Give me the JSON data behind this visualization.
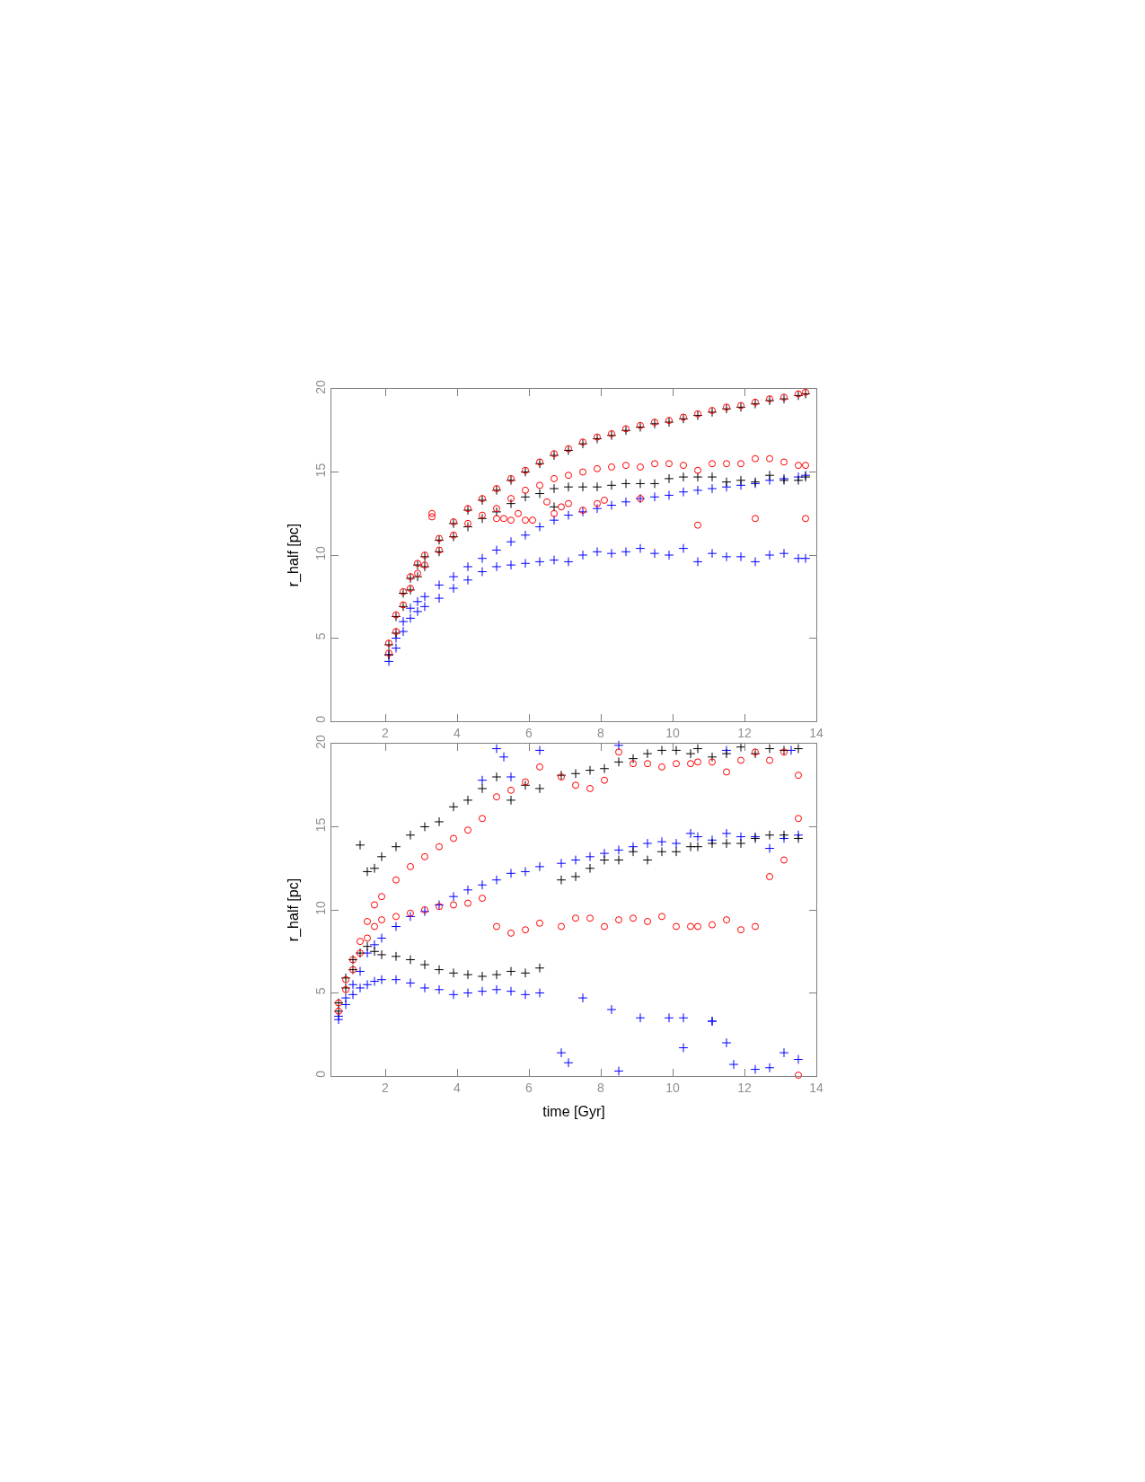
{
  "chart_data": [
    {
      "type": "scatter",
      "ylabel": "r_half [pc]",
      "xlim": [
        0.5,
        14
      ],
      "xticks": [
        2,
        4,
        6,
        8,
        10,
        12,
        14
      ],
      "ylim": [
        0,
        20
      ],
      "yticks": [
        0,
        5,
        10,
        15,
        20
      ],
      "series": [
        {
          "color": "#0000ff",
          "marker": "cross",
          "x": [
            2.1,
            2.3,
            2.5,
            2.7,
            2.9,
            3.1,
            3.5,
            3.9,
            4.3,
            4.7,
            5.1,
            5.5,
            5.9,
            6.3,
            6.7,
            7.1,
            7.5,
            7.9,
            8.3,
            8.7,
            9.1,
            9.5,
            9.9,
            10.3,
            10.7,
            11.1,
            11.5,
            11.9,
            12.3,
            12.7,
            13.1,
            13.5,
            13.7,
            2.1,
            2.3,
            2.5,
            2.7,
            2.9,
            3.1,
            3.5,
            3.9,
            4.3,
            4.7,
            5.1,
            5.5,
            5.9,
            6.3,
            6.7,
            7.1,
            7.5,
            7.9,
            8.3,
            8.7,
            9.1,
            9.5,
            9.9,
            10.3,
            10.7,
            11.1,
            11.5,
            11.9,
            12.3,
            12.7,
            13.1,
            13.5,
            13.7
          ],
          "values": [
            4.0,
            5.0,
            6.0,
            6.8,
            7.2,
            7.5,
            8.2,
            8.7,
            9.3,
            9.8,
            10.3,
            10.8,
            11.2,
            11.7,
            12.1,
            12.4,
            12.6,
            12.8,
            13.0,
            13.2,
            13.4,
            13.5,
            13.6,
            13.8,
            13.9,
            14.0,
            14.1,
            14.2,
            14.3,
            14.5,
            14.6,
            14.7,
            14.8,
            3.6,
            4.4,
            5.4,
            6.2,
            6.6,
            6.9,
            7.4,
            8.0,
            8.5,
            9.0,
            9.3,
            9.4,
            9.5,
            9.6,
            9.7,
            9.6,
            10.0,
            10.2,
            10.1,
            10.2,
            10.4,
            10.1,
            10.0,
            10.4,
            9.6,
            10.1,
            9.9,
            9.9,
            9.6,
            10.0,
            10.1,
            9.8,
            9.8
          ]
        },
        {
          "color": "#000000",
          "marker": "cross",
          "x": [
            2.1,
            2.3,
            2.5,
            2.7,
            2.9,
            3.1,
            3.5,
            3.9,
            4.3,
            4.7,
            5.1,
            5.5,
            5.9,
            6.3,
            6.7,
            7.1,
            7.5,
            7.9,
            8.3,
            8.7,
            9.1,
            9.5,
            9.9,
            10.3,
            10.7,
            11.1,
            11.5,
            11.9,
            12.3,
            12.7,
            13.1,
            13.5,
            13.7,
            2.1,
            2.3,
            2.5,
            2.7,
            2.9,
            3.1,
            3.5,
            3.9,
            4.3,
            4.7,
            5.1,
            5.5,
            5.9,
            6.3,
            6.7,
            7.1,
            7.5,
            7.9,
            8.3,
            8.7,
            9.1,
            9.5,
            9.9,
            10.3,
            10.7,
            11.1,
            11.5,
            11.9,
            12.3,
            12.7,
            13.1,
            13.5,
            13.7,
            6.7
          ],
          "values": [
            4.6,
            6.3,
            7.7,
            8.6,
            9.4,
            9.9,
            10.9,
            11.9,
            12.7,
            13.3,
            13.9,
            14.5,
            15.0,
            15.5,
            16.0,
            16.3,
            16.7,
            17.0,
            17.2,
            17.5,
            17.7,
            17.9,
            18.0,
            18.2,
            18.4,
            18.6,
            18.8,
            18.9,
            19.1,
            19.3,
            19.4,
            19.6,
            19.7,
            4.0,
            5.3,
            6.9,
            7.9,
            8.7,
            9.3,
            10.2,
            11.1,
            11.7,
            12.2,
            12.6,
            13.1,
            13.5,
            13.7,
            14.0,
            14.1,
            14.1,
            14.1,
            14.2,
            14.3,
            14.3,
            14.3,
            14.6,
            14.7,
            14.7,
            14.7,
            14.4,
            14.5,
            14.4,
            14.8,
            14.5,
            14.5,
            14.7,
            12.9
          ]
        },
        {
          "color": "#ff0000",
          "marker": "circle",
          "x": [
            2.1,
            2.3,
            2.5,
            2.7,
            2.9,
            3.1,
            3.5,
            3.9,
            4.3,
            4.7,
            5.1,
            5.5,
            5.9,
            6.3,
            6.7,
            7.1,
            7.5,
            7.9,
            8.3,
            8.7,
            9.1,
            9.5,
            9.9,
            10.3,
            10.7,
            11.1,
            11.5,
            11.9,
            12.3,
            12.7,
            13.1,
            13.5,
            13.7,
            2.1,
            2.3,
            2.5,
            2.7,
            2.9,
            3.1,
            3.5,
            3.9,
            4.3,
            4.7,
            5.1,
            5.5,
            5.9,
            6.3,
            6.7,
            7.1,
            7.5,
            7.9,
            8.3,
            8.7,
            9.1,
            9.5,
            9.9,
            10.3,
            10.7,
            11.1,
            11.5,
            11.9,
            12.3,
            12.7,
            13.1,
            13.5,
            13.7,
            3.3,
            3.3,
            5.1,
            5.3,
            5.5,
            5.7,
            5.9,
            6.1,
            6.5,
            6.7,
            6.9,
            7.1,
            7.5,
            7.9,
            8.1,
            9.1,
            10.7,
            12.3,
            13.7
          ],
          "values": [
            4.7,
            6.4,
            7.8,
            8.7,
            9.5,
            10.0,
            11.0,
            12.0,
            12.8,
            13.4,
            14.0,
            14.6,
            15.1,
            15.6,
            16.1,
            16.4,
            16.8,
            17.1,
            17.3,
            17.6,
            17.8,
            18.0,
            18.1,
            18.3,
            18.5,
            18.7,
            18.9,
            19.0,
            19.2,
            19.4,
            19.5,
            19.7,
            19.8,
            4.1,
            5.4,
            7.0,
            8.0,
            8.9,
            9.4,
            10.3,
            11.2,
            11.9,
            12.4,
            12.8,
            13.4,
            13.9,
            14.2,
            14.6,
            14.8,
            15.0,
            15.2,
            15.3,
            15.4,
            15.3,
            15.5,
            15.5,
            15.4,
            15.1,
            15.5,
            15.5,
            15.5,
            15.8,
            15.8,
            15.6,
            15.4,
            15.4,
            12.5,
            12.3,
            12.2,
            12.2,
            12.1,
            12.5,
            12.1,
            12.1,
            13.2,
            12.5,
            12.9,
            13.1,
            12.7,
            13.1,
            13.3,
            13.4,
            11.8,
            12.2,
            12.2
          ]
        }
      ]
    },
    {
      "type": "scatter",
      "xlabel": "time [Gyr]",
      "ylabel": "r_half [pc]",
      "xlim": [
        0.5,
        14
      ],
      "xticks": [
        2,
        4,
        6,
        8,
        10,
        12,
        14
      ],
      "ylim": [
        0,
        20
      ],
      "yticks": [
        0,
        5,
        10,
        15,
        20
      ],
      "series": [
        {
          "color": "#0000ff",
          "marker": "cross",
          "x": [
            0.7,
            0.9,
            1.1,
            1.3,
            1.5,
            1.7,
            1.9,
            2.3,
            2.7,
            3.1,
            3.5,
            3.9,
            4.3,
            4.7,
            5.1,
            5.5,
            5.9,
            6.3,
            6.9,
            7.3,
            7.7,
            8.1,
            8.5,
            8.9,
            9.3,
            9.7,
            10.1,
            10.5,
            10.7,
            11.1,
            11.5,
            11.9,
            12.3,
            12.7,
            13.1,
            13.5,
            0.7,
            0.9,
            1.1,
            1.3,
            1.5,
            1.7,
            1.9,
            2.3,
            2.7,
            3.1,
            3.5,
            3.9,
            4.3,
            4.7,
            5.1,
            5.5,
            5.9,
            6.3,
            6.9,
            7.1,
            7.5,
            8.3,
            8.5,
            9.1,
            9.9,
            10.3,
            10.3,
            11.1,
            11.1,
            11.5,
            11.7,
            12.3,
            12.7,
            13.1,
            13.5,
            5.1,
            5.3,
            4.7,
            5.5,
            6.3,
            8.5,
            11.5,
            13.3
          ],
          "values": [
            3.6,
            4.7,
            5.5,
            6.3,
            7.4,
            7.9,
            8.3,
            9.0,
            9.6,
            9.9,
            10.3,
            10.8,
            11.2,
            11.5,
            11.8,
            12.2,
            12.3,
            12.6,
            12.8,
            13.0,
            13.2,
            13.4,
            13.6,
            13.8,
            14.0,
            14.1,
            14.0,
            14.6,
            14.4,
            14.2,
            14.6,
            14.4,
            14.4,
            13.7,
            14.3,
            14.5,
            3.4,
            4.3,
            4.9,
            5.3,
            5.5,
            5.7,
            5.8,
            5.8,
            5.6,
            5.3,
            5.2,
            4.9,
            5.0,
            5.1,
            5.2,
            5.1,
            4.9,
            5.0,
            1.4,
            0.8,
            4.7,
            4.0,
            0.3,
            3.5,
            3.5,
            3.5,
            1.7,
            3.3,
            3.3,
            2.0,
            0.7,
            0.4,
            0.5,
            1.4,
            1.0,
            19.7,
            19.2,
            17.8,
            18.0,
            19.6,
            19.9,
            19.6,
            19.6
          ]
        },
        {
          "color": "#000000",
          "marker": "cross",
          "x": [
            0.7,
            0.9,
            1.1,
            1.3,
            1.5,
            1.7,
            1.9,
            2.3,
            2.7,
            3.1,
            3.5,
            3.9,
            4.3,
            4.7,
            5.1,
            5.5,
            5.9,
            6.3,
            6.9,
            7.3,
            7.7,
            8.1,
            8.5,
            8.9,
            9.3,
            9.7,
            10.1,
            10.5,
            10.7,
            11.1,
            11.5,
            11.9,
            12.3,
            12.7,
            13.1,
            13.5,
            0.7,
            0.9,
            1.1,
            1.3,
            1.5,
            1.7,
            1.9,
            2.3,
            2.7,
            3.1,
            3.5,
            3.9,
            4.3,
            4.7,
            5.1,
            5.5,
            5.9,
            6.3,
            6.9,
            7.3,
            7.7,
            8.1,
            8.5,
            8.9,
            9.3,
            9.7,
            10.1,
            10.5,
            10.7,
            11.1,
            11.5,
            11.9,
            12.3,
            12.7,
            13.1,
            13.5
          ],
          "values": [
            4.4,
            5.9,
            7.0,
            13.9,
            12.3,
            12.5,
            13.2,
            13.8,
            14.5,
            15.0,
            15.3,
            16.2,
            16.6,
            17.3,
            18.0,
            16.6,
            17.5,
            17.3,
            18.1,
            18.2,
            18.4,
            18.5,
            18.9,
            19.1,
            19.4,
            19.6,
            19.6,
            19.4,
            19.7,
            19.2,
            19.4,
            19.8,
            19.4,
            19.7,
            19.6,
            19.7,
            3.9,
            5.3,
            6.4,
            7.4,
            7.8,
            7.5,
            7.3,
            7.2,
            7.0,
            6.7,
            6.4,
            6.2,
            6.1,
            6.0,
            6.1,
            6.3,
            6.2,
            6.5,
            11.8,
            12.0,
            12.5,
            13.0,
            13.0,
            13.5,
            13.0,
            13.5,
            13.5,
            13.8,
            13.8,
            14.0,
            14.0,
            14.0,
            14.3,
            14.5,
            14.5,
            14.3
          ]
        },
        {
          "color": "#ff0000",
          "marker": "circle",
          "x": [
            0.7,
            0.9,
            1.1,
            1.3,
            1.5,
            1.7,
            1.9,
            2.3,
            2.7,
            3.1,
            3.5,
            3.9,
            4.3,
            4.7,
            5.1,
            5.5,
            5.9,
            6.3,
            6.9,
            7.3,
            7.7,
            8.1,
            8.5,
            8.9,
            9.3,
            9.7,
            10.1,
            10.5,
            10.7,
            11.1,
            11.5,
            11.9,
            12.3,
            12.7,
            13.1,
            13.5,
            0.7,
            0.9,
            1.1,
            1.3,
            1.5,
            1.7,
            1.9,
            2.3,
            2.7,
            3.1,
            3.5,
            3.9,
            4.3,
            4.7,
            5.1,
            5.5,
            5.9,
            6.3,
            6.9,
            7.3,
            7.7,
            8.1,
            8.5,
            8.9,
            9.3,
            9.7,
            10.1,
            10.5,
            10.7,
            11.1,
            11.5,
            11.9,
            12.3,
            12.7,
            13.1,
            13.5,
            13.5
          ],
          "values": [
            4.4,
            5.8,
            7.0,
            8.1,
            9.3,
            10.3,
            10.8,
            11.8,
            12.6,
            13.2,
            13.8,
            14.3,
            14.8,
            15.5,
            16.8,
            17.2,
            17.7,
            18.6,
            18.0,
            17.5,
            17.3,
            17.8,
            19.5,
            18.8,
            18.8,
            18.6,
            18.8,
            18.8,
            18.9,
            18.9,
            18.3,
            19.0,
            19.5,
            19.0,
            19.5,
            18.1,
            3.9,
            5.2,
            6.4,
            7.4,
            8.3,
            9.0,
            9.4,
            9.6,
            9.8,
            10.0,
            10.2,
            10.3,
            10.4,
            10.7,
            9.0,
            8.6,
            8.8,
            9.2,
            9.0,
            9.5,
            9.5,
            9.0,
            9.4,
            9.5,
            9.3,
            9.6,
            9.0,
            9.0,
            9.0,
            9.1,
            9.4,
            8.8,
            9.0,
            12.0,
            13.0,
            15.5,
            0.05
          ]
        }
      ]
    }
  ]
}
